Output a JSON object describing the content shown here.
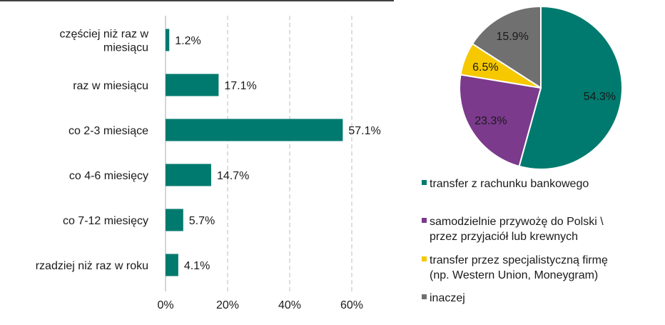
{
  "chart_data": [
    {
      "type": "bar",
      "orientation": "horizontal",
      "categories": [
        [
          "częściej niż raz w",
          "miesiącu"
        ],
        [
          "raz w miesiącu"
        ],
        [
          "co 2-3 miesiące"
        ],
        [
          "co 4-6 miesięcy"
        ],
        [
          "co 7-12 miesięcy"
        ],
        [
          "rzadziej niż raz w roku"
        ]
      ],
      "values": [
        1.2,
        17.1,
        57.1,
        14.7,
        5.7,
        4.1
      ],
      "value_labels": [
        "1.2%",
        "17.1%",
        "57.1%",
        "14.7%",
        "5.7%",
        "4.1%"
      ],
      "xlim": [
        0,
        60
      ],
      "xticks": [
        0,
        20,
        40,
        60
      ],
      "xtick_labels": [
        "0%",
        "20%",
        "40%",
        "60%"
      ],
      "grid": "vertical dashed",
      "color": "#007a6e"
    },
    {
      "type": "pie",
      "slices": [
        {
          "label": [
            "transfer z rachunku bankowego"
          ],
          "value": 54.3,
          "value_label": "54.3%",
          "color": "#007a6e"
        },
        {
          "label": [
            "samodzielnie przywożę do Polski \\",
            "przez przyjaciół lub krewnych"
          ],
          "value": 23.3,
          "value_label": "23.3%",
          "color": "#7b3a8c"
        },
        {
          "label": [
            "transfer przez specjalistyczną firmę",
            "(np. Western Union, Moneygram)"
          ],
          "value": 6.5,
          "value_label": "6.5%",
          "color": "#f5c800"
        },
        {
          "label": [
            "inaczej"
          ],
          "value": 15.9,
          "value_label": "15.9%",
          "color": "#707070"
        }
      ],
      "legend_placement": "bottom"
    }
  ]
}
